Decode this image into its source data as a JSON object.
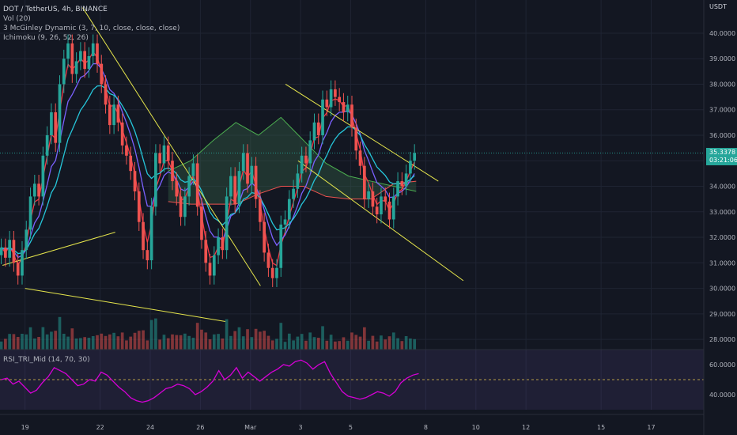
{
  "header": {
    "symbol_line": "DOT / TetherUS, 4h, BINANCE",
    "vol_label": "Vol (20)",
    "mcginley_label": "3 McGinley Dynamic (3, 7, 10, close, close, close)",
    "ichimoku_label": "Ichimoku (9, 26, 52, 26)",
    "rsi_label": "RSI_TRI_Mid (14, 70, 30)",
    "currency": "USDT"
  },
  "price_badge": {
    "value": "35.3378",
    "countdown": "03:21:06"
  },
  "colors": {
    "background": "#131722",
    "up": "#26a69a",
    "down": "#ef5350",
    "trendline": "#e6e64c",
    "rsi": "#d600d6",
    "cloud_up": "#3a6b4a",
    "cloud_down": "#7a3a3a"
  },
  "chart_data": [
    {
      "type": "candlestick",
      "title": "DOT / TetherUS, 4h, BINANCE",
      "ylim": [
        27.6,
        41.3
      ],
      "y_ticks": [
        "40.0000",
        "39.0000",
        "38.0000",
        "37.0000",
        "36.0000",
        "35.0000",
        "34.0000",
        "33.0000",
        "32.0000",
        "31.0000",
        "30.0000",
        "29.0000",
        "28.0000"
      ],
      "x_ticks": [
        "19",
        "22",
        "24",
        "26",
        "Mar",
        "3",
        "5",
        "8",
        "10",
        "12",
        "15",
        "17"
      ],
      "x_tick_units": [
        1.5,
        4.5,
        6.5,
        8.5,
        10.5,
        12.5,
        14.5,
        17.5,
        19.5,
        21.5,
        24.5,
        26.5
      ],
      "x_range_units": [
        0.5,
        28.6
      ],
      "candles_per_unit": 6,
      "closes": [
        31.6,
        31.2,
        31.9,
        31.0,
        30.5,
        31.5,
        32.3,
        33.6,
        34.1,
        33.6,
        35.2,
        36.0,
        36.9,
        35.7,
        38.0,
        39.0,
        39.6,
        38.4,
        38.9,
        39.3,
        38.6,
        39.1,
        39.6,
        38.8,
        38.0,
        37.2,
        36.4,
        37.2,
        36.5,
        35.6,
        35.2,
        34.6,
        33.8,
        32.6,
        31.5,
        31.1,
        33.2,
        35.3,
        34.9,
        35.6,
        35.0,
        34.2,
        33.6,
        32.8,
        33.6,
        34.4,
        34.9,
        33.2,
        31.9,
        31.0,
        30.5,
        31.3,
        32.0,
        31.5,
        33.6,
        34.4,
        33.3,
        34.6,
        35.3,
        34.1,
        34.8,
        33.5,
        32.6,
        31.4,
        30.8,
        30.4,
        30.8,
        32.5,
        32.7,
        33.5,
        33.9,
        34.5,
        35.2,
        34.9,
        35.8,
        36.5,
        36.0,
        37.4,
        37.1,
        37.8,
        37.5,
        37.3,
        36.9,
        37.2,
        36.3,
        35.4,
        34.8,
        33.5,
        33.8,
        33.2,
        32.9,
        33.6,
        33.4,
        32.7,
        33.6,
        34.2,
        34.0,
        34.5,
        35.0,
        35.3
      ],
      "ichimoku_lead_a": [
        34.6,
        35.0,
        35.8,
        36.5,
        36.0,
        36.7,
        35.8,
        34.9,
        34.4,
        34.2,
        34.0,
        33.8
      ],
      "ichimoku_lead_b": [
        33.4,
        33.3,
        33.3,
        33.3,
        33.7,
        34.0,
        34.0,
        33.6,
        33.5,
        33.5,
        34.1,
        34.2
      ],
      "volume": {
        "ylim": [
          0,
          100
        ],
        "note": "relative volume bars"
      }
    },
    {
      "type": "line",
      "title": "RSI_TRI_Mid (14, 70, 30)",
      "ylim": [
        30,
        70
      ],
      "y_ticks": [
        "60.0000",
        "40.0000"
      ],
      "values": [
        50,
        51,
        47,
        49,
        45,
        41,
        43,
        48,
        52,
        58,
        56,
        54,
        50,
        46,
        47,
        50,
        49,
        55,
        53,
        49,
        45,
        42,
        38,
        36,
        35,
        36,
        38,
        41,
        44,
        45,
        47,
        46,
        44,
        40,
        42,
        45,
        49,
        56,
        50,
        53,
        58,
        51,
        55,
        52,
        49,
        52,
        55,
        57,
        60,
        59,
        62,
        63,
        61,
        57,
        60,
        62,
        54,
        48,
        42,
        39,
        38,
        37,
        38,
        40,
        42,
        41,
        39,
        42,
        48,
        51,
        53,
        54
      ]
    }
  ]
}
